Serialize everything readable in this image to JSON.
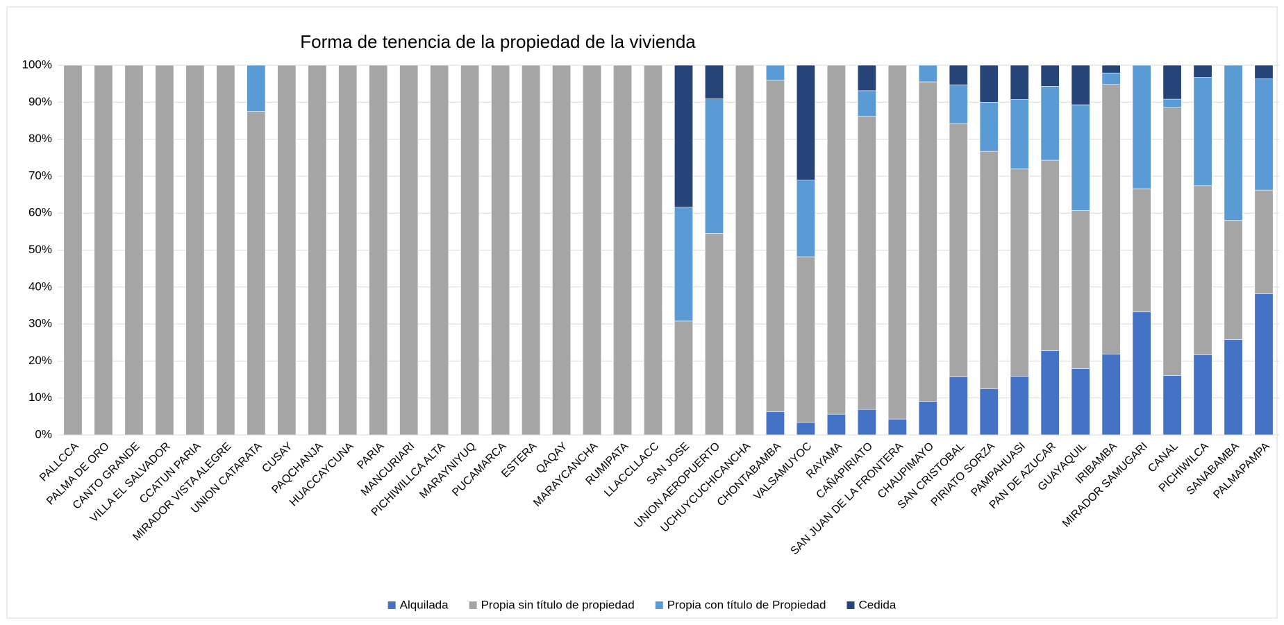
{
  "chart_data": {
    "type": "stacked_bar",
    "title": "Forma de tenencia de la propiedad de la vivienda",
    "categories": [
      "PALLCCA",
      "PALMA DE ORO",
      "CANTO GRANDE",
      "VILLA EL SALVADOR",
      "CCATUN PARIA",
      "MIRADOR VISTA ALEGRE",
      "UNION CATARATA",
      "CUSAY",
      "PAQCHANJA",
      "HUACCAYCUNA",
      "PARIA",
      "MANCURIARI",
      "PICHIWILLCA ALTA",
      "MARAYNIYUQ",
      "PUCAMARCA",
      "ESTERA",
      "QAQAY",
      "MARAYCANCHA",
      "RUMIPATA",
      "LLACCLLACC",
      "SAN JOSE",
      "UNION AEROPUERTO",
      "UCHUYCUCHICANCHA",
      "CHONTABAMBA",
      "VALSAMUYOC",
      "RAYAMA",
      "CAÑAPIRIATO",
      "SAN JUAN DE LA FRONTERA",
      "CHAUPIMAYO",
      "SAN CRISTOBAL",
      "PIRIATO SORZA",
      "PAMPAHUASI",
      "PAN DE AZUCAR",
      "GUAYAQUIL",
      "IRIBAMBA",
      "MIRADOR SAMUGARI",
      "CANAL",
      "PICHIWILCA",
      "SANABAMBA",
      "PALMAPAMPA"
    ],
    "series": [
      {
        "name": "Alquilada",
        "color": "#4472c4",
        "values": [
          0,
          0,
          0,
          0,
          0,
          0,
          0,
          0,
          0,
          0,
          0,
          0,
          0,
          0,
          0,
          0,
          0,
          0,
          0,
          0,
          0,
          0,
          0,
          6.3,
          3.4,
          5.6,
          6.9,
          4.3,
          9.1,
          15.8,
          12.5,
          15.9,
          22.8,
          17.9,
          21.9,
          33.3,
          16,
          21.7,
          25.8,
          38.2
        ]
      },
      {
        "name": "Propia sin título de propiedad",
        "color": "#a5a5a5",
        "values": [
          100,
          100,
          100,
          100,
          100,
          100,
          87.5,
          100,
          100,
          100,
          100,
          100,
          100,
          100,
          100,
          100,
          100,
          100,
          100,
          100,
          30.8,
          54.5,
          100,
          89.6,
          44.8,
          94.4,
          79.3,
          95.7,
          86.4,
          68.4,
          64.2,
          56.1,
          51.5,
          42.8,
          72.9,
          33.3,
          72.6,
          45.7,
          32.3,
          28.0
        ]
      },
      {
        "name": "Propia con título de Propiedad",
        "color": "#5b9bd5",
        "values": [
          0,
          0,
          0,
          0,
          0,
          0,
          12.5,
          0,
          0,
          0,
          0,
          0,
          0,
          0,
          0,
          0,
          0,
          0,
          0,
          0,
          30.8,
          36.4,
          0,
          4.1,
          20.7,
          0,
          6.9,
          0,
          4.5,
          10.5,
          13.3,
          18.7,
          20,
          28.6,
          3.1,
          33.4,
          2.2,
          29.3,
          41.9,
          30.1
        ]
      },
      {
        "name": "Cedida",
        "color": "#264478",
        "values": [
          0,
          0,
          0,
          0,
          0,
          0,
          0,
          0,
          0,
          0,
          0,
          0,
          0,
          0,
          0,
          0,
          0,
          0,
          0,
          0,
          38.4,
          9.1,
          0,
          0,
          31.1,
          0,
          6.9,
          0,
          0,
          5.3,
          10,
          9.3,
          5.7,
          10.7,
          2.1,
          0,
          9.2,
          3.3,
          0,
          3.7
        ]
      }
    ],
    "ylim": [
      0,
      100
    ],
    "yticks": [
      {
        "value": 0,
        "label": "0%"
      },
      {
        "value": 10,
        "label": "10%"
      },
      {
        "value": 20,
        "label": "20%"
      },
      {
        "value": 30,
        "label": "30%"
      },
      {
        "value": 40,
        "label": "40%"
      },
      {
        "value": 50,
        "label": "50%"
      },
      {
        "value": 60,
        "label": "60%"
      },
      {
        "value": 70,
        "label": "70%"
      },
      {
        "value": 80,
        "label": "80%"
      },
      {
        "value": 90,
        "label": "90%"
      },
      {
        "value": 100,
        "label": "100%"
      }
    ],
    "grid": true,
    "legend": "bottom"
  }
}
